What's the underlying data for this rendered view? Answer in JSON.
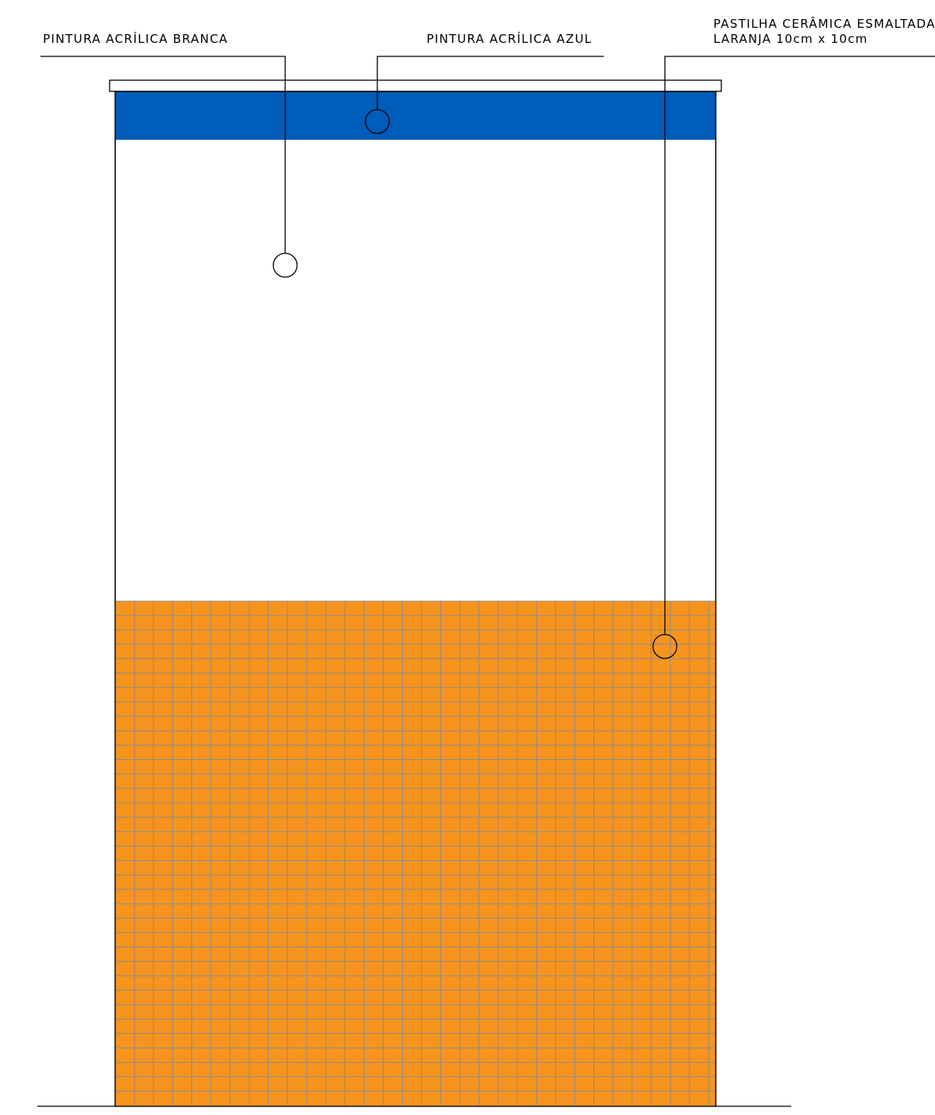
{
  "colors": {
    "blue_band": "#005cb9",
    "tile_fill": "#f7941d",
    "tile_grout": "#8c8c8c",
    "wall_white": "#ffffff",
    "outline": "#000000"
  },
  "callouts": {
    "white_paint": {
      "label": "PINTURA ACRÍLICA BRANCA"
    },
    "blue_paint": {
      "label": "PINTURA ACRÍLICA AZUL"
    },
    "ceramic_tile": {
      "label_line1": "PASTILHA CERÂMICA ESMALTADA",
      "label_line2": "LARANJA 10cm x 10cm"
    }
  }
}
